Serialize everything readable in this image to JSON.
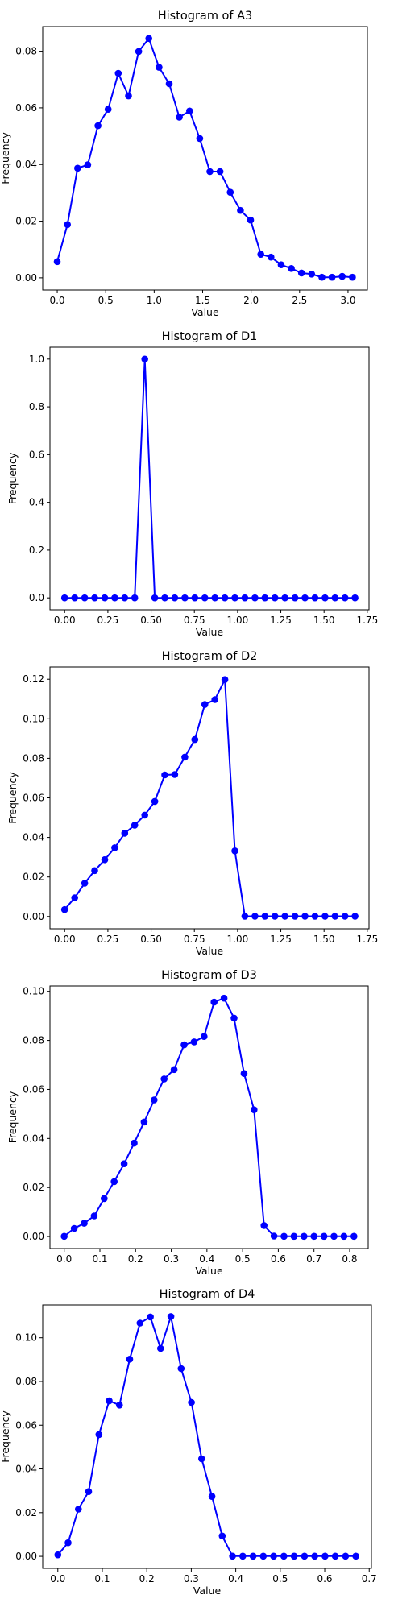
{
  "chart_data": [
    {
      "type": "line",
      "title": "Histogram of A3",
      "xlabel": "Value",
      "ylabel": "Frequency",
      "color": "#0000ff",
      "xlim": [
        -0.15,
        3.2
      ],
      "ylim": [
        -0.0043,
        0.0887
      ],
      "xticks": [
        0,
        0.5,
        1.0,
        1.5,
        2.0,
        2.5,
        3.0
      ],
      "xtick_labels": [
        "0.0",
        "0.5",
        "1.0",
        "1.5",
        "2.0",
        "2.5",
        "3.0"
      ],
      "yticks": [
        0,
        0.02,
        0.04,
        0.06,
        0.08
      ],
      "ytick_labels": [
        "0.00",
        "0.02",
        "0.04",
        "0.06",
        "0.08"
      ],
      "x": [
        0.0,
        0.105,
        0.21,
        0.315,
        0.42,
        0.525,
        0.63,
        0.735,
        0.84,
        0.945,
        1.05,
        1.155,
        1.26,
        1.365,
        1.47,
        1.575,
        1.68,
        1.785,
        1.89,
        1.995,
        2.1,
        2.205,
        2.31,
        2.415,
        2.52,
        2.625,
        2.73,
        2.835,
        2.94,
        3.045
      ],
      "y": [
        0.0057,
        0.0188,
        0.0387,
        0.0399,
        0.0537,
        0.0595,
        0.0722,
        0.0642,
        0.0799,
        0.0845,
        0.0743,
        0.0685,
        0.0567,
        0.0589,
        0.0492,
        0.0375,
        0.0375,
        0.0302,
        0.0238,
        0.0204,
        0.0083,
        0.0073,
        0.0046,
        0.0033,
        0.0017,
        0.0013,
        0.0002,
        0.0002,
        0.0005,
        0.0002
      ]
    },
    {
      "type": "line",
      "title": "Histogram of D1",
      "xlabel": "Value",
      "ylabel": "Frequency",
      "color": "#0000ff",
      "xlim": [
        -0.085,
        1.76
      ],
      "ylim": [
        -0.05,
        1.05
      ],
      "xticks": [
        0,
        0.25,
        0.5,
        0.75,
        1.0,
        1.25,
        1.5,
        1.75
      ],
      "xtick_labels": [
        "0.00",
        "0.25",
        "0.50",
        "0.75",
        "1.00",
        "1.25",
        "1.50",
        "1.75"
      ],
      "yticks": [
        0,
        0.2,
        0.4,
        0.6,
        0.8,
        1.0
      ],
      "ytick_labels": [
        "0.0",
        "0.2",
        "0.4",
        "0.6",
        "0.8",
        "1.0"
      ],
      "x": [
        0.0,
        0.0579,
        0.1158,
        0.1737,
        0.2316,
        0.2895,
        0.3474,
        0.4053,
        0.4632,
        0.5211,
        0.579,
        0.6369,
        0.6948,
        0.7527,
        0.8106,
        0.8685,
        0.9264,
        0.9843,
        1.0422,
        1.1001,
        1.158,
        1.2159,
        1.2738,
        1.3317,
        1.3896,
        1.4475,
        1.5054,
        1.5633,
        1.6212,
        1.6791
      ],
      "y": [
        0,
        0,
        0,
        0,
        0,
        0,
        0,
        0,
        1.0,
        0,
        0,
        0,
        0,
        0,
        0,
        0,
        0,
        0,
        0,
        0,
        0,
        0,
        0,
        0,
        0,
        0,
        0,
        0,
        0,
        0
      ]
    },
    {
      "type": "line",
      "title": "Histogram of D2",
      "xlabel": "Value",
      "ylabel": "Frequency",
      "color": "#0000ff",
      "xlim": [
        -0.085,
        1.76
      ],
      "ylim": [
        -0.0062,
        0.1262
      ],
      "xticks": [
        0,
        0.25,
        0.5,
        0.75,
        1.0,
        1.25,
        1.5,
        1.75
      ],
      "xtick_labels": [
        "0.00",
        "0.25",
        "0.50",
        "0.75",
        "1.00",
        "1.25",
        "1.50",
        "1.75"
      ],
      "yticks": [
        0,
        0.02,
        0.04,
        0.06,
        0.08,
        0.1,
        0.12
      ],
      "ytick_labels": [
        "0.00",
        "0.02",
        "0.04",
        "0.06",
        "0.08",
        "0.10",
        "0.12"
      ],
      "x": [
        0.0,
        0.0579,
        0.1158,
        0.1737,
        0.2316,
        0.2895,
        0.3474,
        0.4053,
        0.4632,
        0.5211,
        0.579,
        0.6369,
        0.6948,
        0.7527,
        0.8106,
        0.8685,
        0.9264,
        0.9843,
        1.0422,
        1.1001,
        1.158,
        1.2159,
        1.2738,
        1.3317,
        1.3896,
        1.4475,
        1.5054,
        1.5633,
        1.6212,
        1.6791
      ],
      "y": [
        0.0035,
        0.0095,
        0.0168,
        0.0232,
        0.0287,
        0.0348,
        0.0421,
        0.0462,
        0.0513,
        0.0582,
        0.0716,
        0.0718,
        0.0806,
        0.0895,
        0.1072,
        0.1097,
        0.1198,
        0.0332,
        0.0001,
        0.0001,
        0.0001,
        0.0001,
        0.0001,
        0.0001,
        0.0001,
        0.0001,
        0.0001,
        0.0001,
        0.0001,
        0.0001
      ]
    },
    {
      "type": "line",
      "title": "Histogram of D3",
      "xlabel": "Value",
      "ylabel": "Frequency",
      "color": "#0000ff",
      "xlim": [
        -0.04,
        0.852
      ],
      "ylim": [
        -0.0049,
        0.1022
      ],
      "xticks": [
        0,
        0.1,
        0.2,
        0.3,
        0.4,
        0.5,
        0.6,
        0.7,
        0.8
      ],
      "xtick_labels": [
        "0.0",
        "0.1",
        "0.2",
        "0.3",
        "0.4",
        "0.5",
        "0.6",
        "0.7",
        "0.8"
      ],
      "yticks": [
        0,
        0.02,
        0.04,
        0.06,
        0.08,
        0.1
      ],
      "ytick_labels": [
        "0.00",
        "0.02",
        "0.04",
        "0.06",
        "0.08",
        "0.10"
      ],
      "x": [
        0.0,
        0.028,
        0.056,
        0.084,
        0.112,
        0.14,
        0.168,
        0.196,
        0.224,
        0.252,
        0.28,
        0.308,
        0.336,
        0.364,
        0.392,
        0.42,
        0.448,
        0.476,
        0.504,
        0.532,
        0.56,
        0.588,
        0.616,
        0.644,
        0.672,
        0.7,
        0.728,
        0.756,
        0.784,
        0.812
      ],
      "y": [
        0.0001,
        0.0033,
        0.0054,
        0.0084,
        0.0155,
        0.0224,
        0.0297,
        0.0381,
        0.0467,
        0.0557,
        0.0643,
        0.0681,
        0.0782,
        0.0794,
        0.0816,
        0.0956,
        0.0972,
        0.0891,
        0.0665,
        0.0517,
        0.0045,
        0.0002,
        0.0001,
        0.0001,
        0.0001,
        0.0001,
        0.0001,
        0.0001,
        0.0001,
        0.0001
      ]
    },
    {
      "type": "line",
      "title": "Histogram of D4",
      "xlabel": "Value",
      "ylabel": "Frequency",
      "color": "#0000ff",
      "xlim": [
        -0.034,
        0.705
      ],
      "ylim": [
        -0.0055,
        0.115
      ],
      "xticks": [
        0,
        0.1,
        0.2,
        0.3,
        0.4,
        0.5,
        0.6,
        0.7
      ],
      "xtick_labels": [
        "0.0",
        "0.1",
        "0.2",
        "0.3",
        "0.4",
        "0.5",
        "0.6",
        "0.7"
      ],
      "yticks": [
        0,
        0.02,
        0.04,
        0.06,
        0.08,
        0.1
      ],
      "ytick_labels": [
        "0.00",
        "0.02",
        "0.04",
        "0.06",
        "0.08",
        "0.10"
      ],
      "x": [
        0.0,
        0.0231,
        0.0462,
        0.0693,
        0.0924,
        0.1155,
        0.1386,
        0.1617,
        0.1848,
        0.2079,
        0.231,
        0.2541,
        0.2772,
        0.3003,
        0.3234,
        0.3465,
        0.3696,
        0.3927,
        0.4158,
        0.4389,
        0.462,
        0.4851,
        0.5082,
        0.5313,
        0.5544,
        0.5775,
        0.6006,
        0.6237,
        0.6468,
        0.6699
      ],
      "y": [
        0.0007,
        0.0062,
        0.0216,
        0.0296,
        0.0557,
        0.0711,
        0.0692,
        0.0902,
        0.1067,
        0.1095,
        0.0951,
        0.1097,
        0.0859,
        0.0704,
        0.0446,
        0.0274,
        0.0093,
        0.0001,
        0.0001,
        0.0001,
        0.0001,
        0.0001,
        0.0001,
        0.0001,
        0.0001,
        0.0001,
        0.0001,
        0.0001,
        0.0001,
        0.0001
      ]
    }
  ]
}
